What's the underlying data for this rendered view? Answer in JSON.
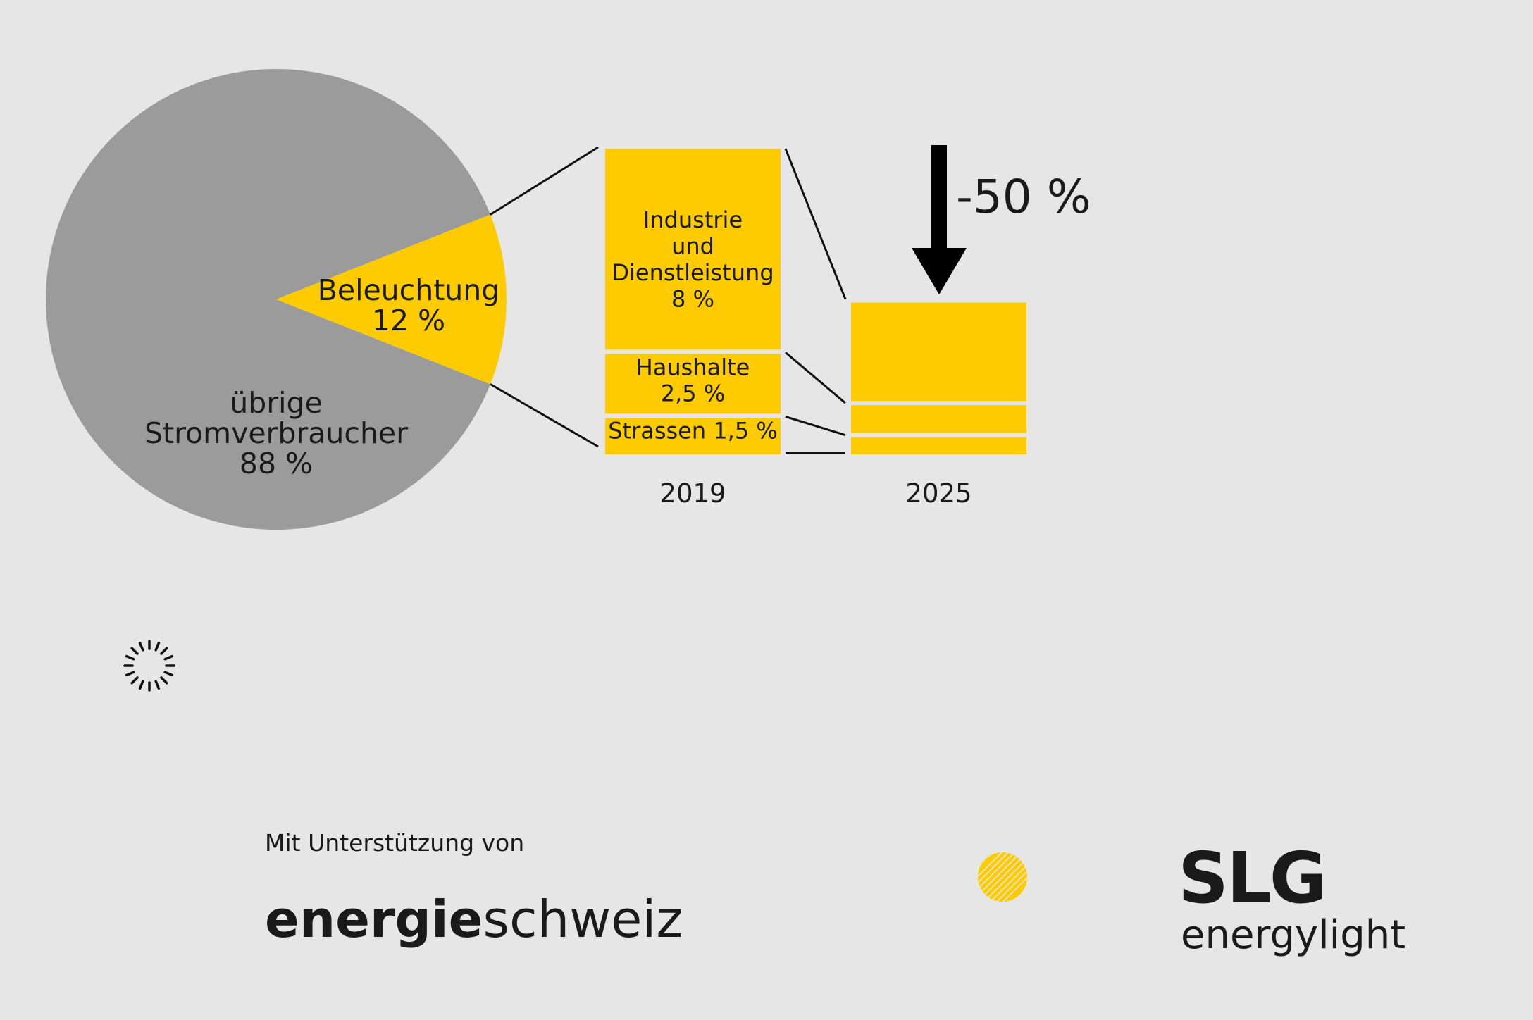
{
  "colors": {
    "background": "#e6e6e6",
    "lighting": "#fecb00",
    "other": "#9b9b9b",
    "text": "#1a1a1a"
  },
  "chart_data": [
    {
      "type": "pie",
      "slices": [
        {
          "label_lines": [
            "Beleuchtung",
            "12 %"
          ],
          "value": 12,
          "color": "#fecb00"
        },
        {
          "label_lines": [
            "übrige",
            "Stromverbraucher",
            "88 %"
          ],
          "value": 88,
          "color": "#9b9b9b"
        }
      ]
    },
    {
      "type": "bar",
      "stacked": true,
      "categories": [
        "2019",
        "2025"
      ],
      "series": [
        {
          "label_lines": [
            "Industrie",
            "und",
            "Dienstleistung",
            "8 %"
          ],
          "values": [
            8,
            4
          ]
        },
        {
          "label_lines": [
            "Haushalte",
            "2,5 %"
          ],
          "values": [
            2.5,
            1.25
          ]
        },
        {
          "label_lines": [
            "Strassen 1,5 %"
          ],
          "values": [
            1.5,
            0.75
          ]
        }
      ],
      "change_label": "-50 %"
    }
  ],
  "footer": {
    "support_text": "Mit Unterstützung von",
    "partner_logo_bold": "energie",
    "partner_logo_light": "schweiz",
    "brand_logo_top": "SLG",
    "brand_logo_bottom": "energylight"
  }
}
